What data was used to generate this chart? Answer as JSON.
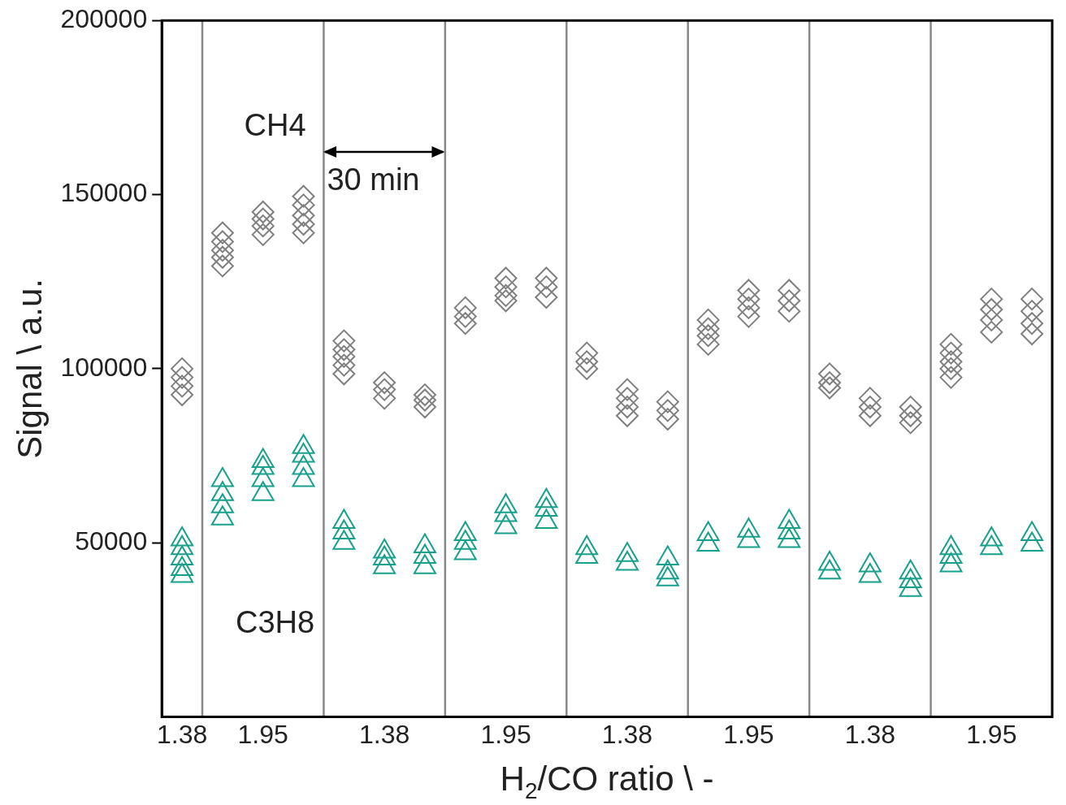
{
  "chart_data": {
    "type": "scatter",
    "xlabel": "H$_{2}$/CO ratio \\ -",
    "ylabel": "Signal \\ a.u.",
    "categories": [
      "1.38",
      null,
      "1.95",
      null,
      null,
      "1.38",
      null,
      null,
      "1.95",
      null,
      null,
      "1.38",
      null,
      null,
      "1.95",
      null,
      null,
      "1.38",
      null,
      null,
      "1.95",
      null
    ],
    "ylim": [
      0,
      200000
    ],
    "yticks": [
      50000,
      100000,
      150000,
      200000
    ],
    "annotations": [
      "30 min"
    ],
    "series": [
      {
        "name": "CH4",
        "color": "#808080",
        "marker": "diamond",
        "values": [
          100000,
          139000,
          145000,
          149500,
          108000,
          96000,
          92500,
          117500,
          126000,
          126000,
          104500,
          94000,
          90500,
          114000,
          122500,
          122500,
          98500,
          91500,
          89000,
          107000,
          120000,
          120000
        ]
      },
      {
        "color": "#808080",
        "marker": "diamond",
        "values": [
          97500,
          136500,
          143000,
          147000,
          105500,
          94000,
          91000,
          115000,
          123500,
          123500,
          102000,
          91500,
          88000,
          111500,
          120000,
          119500,
          96000,
          89000,
          86500,
          104500,
          117000,
          116500
        ]
      },
      {
        "color": "#808080",
        "marker": "diamond",
        "values": [
          95000,
          134000,
          141000,
          144000,
          103500,
          91500,
          89000,
          113000,
          121000,
          120500,
          100000,
          89000,
          85500,
          109500,
          117500,
          116500,
          94500,
          86500,
          84500,
          102000,
          114000,
          113000
        ]
      },
      {
        "color": "#808080",
        "marker": "diamond",
        "values": [
          92500,
          132000,
          138500,
          141500,
          101000,
          null,
          null,
          null,
          119500,
          null,
          null,
          86500,
          null,
          107000,
          115000,
          null,
          null,
          null,
          null,
          100000,
          110500,
          110000
        ]
      },
      {
        "color": "#808080",
        "marker": "diamond",
        "values": [
          null,
          129500,
          null,
          139000,
          98500,
          null,
          null,
          null,
          null,
          null,
          null,
          null,
          null,
          null,
          null,
          null,
          null,
          null,
          null,
          97500,
          null,
          null
        ]
      },
      {
        "name": "C3H8",
        "color": "#17a08b",
        "marker": "triangle",
        "values": [
          51000,
          68000,
          73500,
          77500,
          56000,
          47500,
          49000,
          52500,
          60500,
          62000,
          48500,
          46500,
          45500,
          52500,
          53500,
          56000,
          44000,
          43500,
          41500,
          48500,
          51000,
          52500
        ]
      },
      {
        "color": "#17a08b",
        "marker": "triangle",
        "values": [
          48500,
          64000,
          71500,
          75000,
          53000,
          45500,
          46000,
          50000,
          58000,
          59500,
          46000,
          44000,
          41500,
          49500,
          50500,
          53000,
          41500,
          40500,
          39000,
          46000,
          48500,
          49500
        ]
      },
      {
        "color": "#17a08b",
        "marker": "triangle",
        "values": [
          45500,
          60500,
          68000,
          71500,
          50000,
          43000,
          43000,
          47000,
          54500,
          56000,
          null,
          null,
          39500,
          null,
          null,
          50500,
          null,
          null,
          36500,
          43500,
          null,
          null
        ]
      },
      {
        "color": "#17a08b",
        "marker": "triangle",
        "values": [
          42500,
          57000,
          64000,
          68000,
          null,
          null,
          null,
          null,
          null,
          null,
          null,
          null,
          null,
          null,
          null,
          null,
          null,
          null,
          null,
          null,
          null,
          null
        ]
      },
      {
        "color": "#17a08b",
        "marker": "triangle",
        "values": [
          40500,
          null,
          null,
          null,
          null,
          null,
          null,
          null,
          null,
          null,
          null,
          null,
          null,
          null,
          null,
          null,
          null,
          null,
          null,
          null,
          null,
          null
        ]
      }
    ]
  }
}
